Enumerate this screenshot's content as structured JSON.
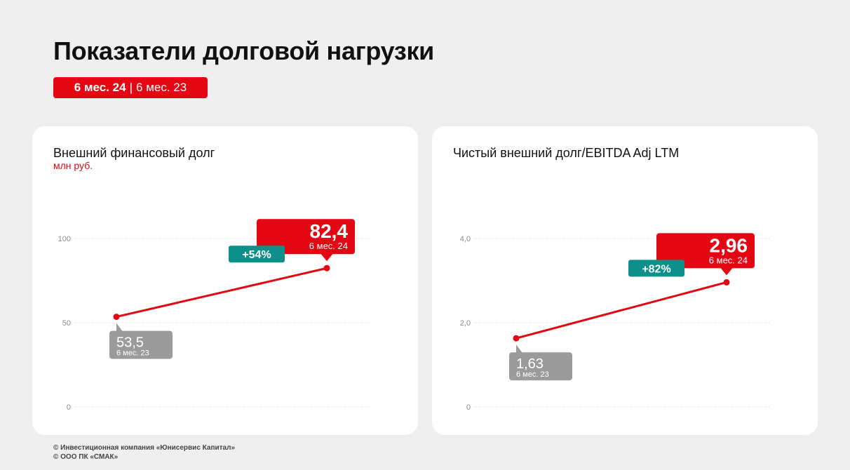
{
  "page": {
    "title": "Показатели долговой нагрузки",
    "period_current": "6 мес. 24",
    "period_separator": "|",
    "period_previous": "6 мес. 23"
  },
  "colors": {
    "accent": "#e30613",
    "change_badge": "#0f8f8a",
    "previous_badge": "#9b9b9b",
    "grid": "#d8d8d8",
    "tick": "#8c8c8c"
  },
  "footer": {
    "line1": "© Инвестиционная компания «Юнисервис Капитал»",
    "line2": "© ООО ПК «СМАК»"
  },
  "chart_data": [
    {
      "type": "line",
      "title": "Внешний финансовый долг",
      "unit": "млн руб.",
      "x": [
        "6 мес. 23",
        "6 мес. 24"
      ],
      "values": [
        53.5,
        82.4
      ],
      "value_labels": [
        "53,5",
        "82,4"
      ],
      "period_labels": [
        "6 мес. 23",
        "6 мес. 24"
      ],
      "change_label": "+54%",
      "ylim": [
        0,
        100
      ],
      "yticks": [
        0,
        50,
        100
      ],
      "ytick_labels": [
        "0",
        "50",
        "100"
      ],
      "grid": true
    },
    {
      "type": "line",
      "title": "Чистый внешний долг/EBITDA Adj LTM",
      "unit": "",
      "x": [
        "6 мес. 23",
        "6 мес. 24"
      ],
      "values": [
        1.63,
        2.96
      ],
      "value_labels": [
        "1,63",
        "2,96"
      ],
      "period_labels": [
        "6 мес. 23",
        "6 мес. 24"
      ],
      "change_label": "+82%",
      "ylim": [
        0,
        4
      ],
      "yticks": [
        0,
        2,
        4
      ],
      "ytick_labels": [
        "0",
        "2,0",
        "4,0"
      ],
      "grid": true
    }
  ]
}
